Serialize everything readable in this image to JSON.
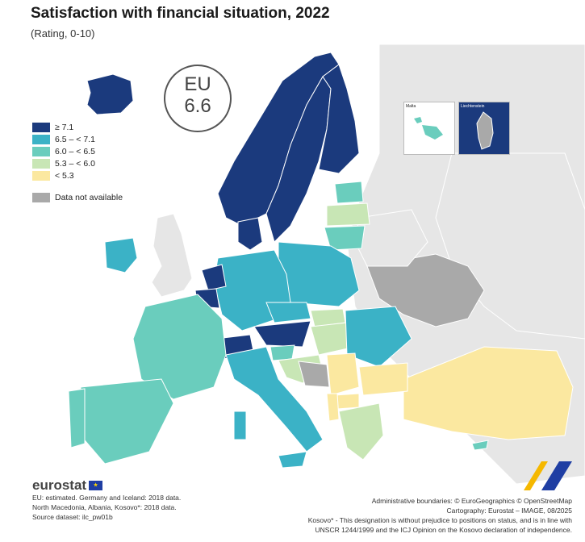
{
  "title": "Satisfaction with financial situation, 2022",
  "subtitle": "(Rating, 0-10)",
  "eu_badge": {
    "label": "EU",
    "value": "6.6"
  },
  "legend": [
    {
      "label": "≥ 7.1",
      "color": "#1b3a7d"
    },
    {
      "label": "6.5 – < 7.1",
      "color": "#3bb2c6"
    },
    {
      "label": "6.0 – < 6.5",
      "color": "#6acdbd"
    },
    {
      "label": "5.3 – < 6.0",
      "color": "#c8e6b5"
    },
    {
      "label": "< 5.3",
      "color": "#fbe8a0"
    }
  ],
  "legend_na": {
    "label": "Data not available",
    "color": "#a9a9a9"
  },
  "insets": {
    "malta": "Malta",
    "liechtenstein": "Liechtenstein"
  },
  "footer_left": {
    "logo": "eurostat",
    "line1": "EU: estimated. Germany and Iceland: 2018 data.",
    "line2": "North Macedonia, Albania, Kosovo*: 2018 data.",
    "line3": "Source dataset: ilc_pw01b"
  },
  "footer_right": {
    "line1": "Administrative boundaries: © EuroGeographics © OpenStreetMap",
    "line2": "Cartography: Eurostat – IMAGE, 08/2025",
    "line3": "Kosovo* - This designation is without prejudice to positions on status, and is in line with",
    "line4": "UNSCR 1244/1999 and the ICJ Opinion on the Kosovo declaration of independence."
  },
  "colors": {
    "non_eu": "#e6e6e6",
    "sea": "#ffffff",
    "border": "#ffffff"
  }
}
